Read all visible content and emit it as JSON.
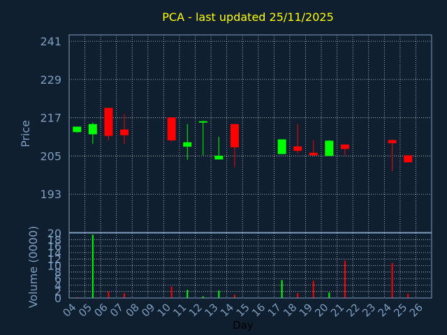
{
  "title": "PCA - last updated 25/11/2025",
  "colors": {
    "background": "#0f1f30",
    "title": "#ffff00",
    "axis_text": "#7f9fc0",
    "frame": "#7f9fc0",
    "grid": "#ffffff",
    "up": "#00ff00",
    "down": "#ff0000"
  },
  "chart_data": [
    {
      "type": "candlestick",
      "ylabel": "Price",
      "ylim": [
        181,
        243
      ],
      "yticks": [
        193,
        205,
        217,
        229,
        241
      ],
      "grid": true,
      "x_day_labels": [
        "04",
        "05",
        "06",
        "07",
        "08",
        "09",
        "10",
        "11",
        "12",
        "13",
        "14",
        "15",
        "16",
        "17",
        "18",
        "19",
        "20",
        "21",
        "22",
        "23",
        "24",
        "25",
        "26"
      ],
      "candles": [
        {
          "day": "04",
          "open": 212.5,
          "high": 214.2,
          "low": 212.3,
          "close": 214.2
        },
        {
          "day": "05",
          "open": 211.8,
          "high": 215.5,
          "low": 208.8,
          "close": 215.0
        },
        {
          "day": "06",
          "open": 220.1,
          "high": 220.1,
          "low": 209.9,
          "close": 211.3
        },
        {
          "day": "07",
          "open": 213.3,
          "high": 218.2,
          "low": 208.8,
          "close": 211.5
        },
        {
          "day": "10",
          "open": 217.1,
          "high": 217.1,
          "low": 209.5,
          "close": 209.9
        },
        {
          "day": "11",
          "open": 207.9,
          "high": 215.0,
          "low": 203.8,
          "close": 209.3
        },
        {
          "day": "12",
          "open": 215.9,
          "high": 216.1,
          "low": 205.2,
          "close": 215.9
        },
        {
          "day": "13",
          "open": 203.9,
          "high": 211.0,
          "low": 203.9,
          "close": 205.1
        },
        {
          "day": "14",
          "open": 215.0,
          "high": 215.0,
          "low": 201.5,
          "close": 207.7
        },
        {
          "day": "17",
          "open": 205.6,
          "high": 210.2,
          "low": 205.5,
          "close": 210.2
        },
        {
          "day": "18",
          "open": 208.0,
          "high": 215.0,
          "low": 205.8,
          "close": 206.6
        },
        {
          "day": "19",
          "open": 206.0,
          "high": 210.0,
          "low": 205.0,
          "close": 205.2
        },
        {
          "day": "20",
          "open": 205.0,
          "high": 210.0,
          "low": 205.0,
          "close": 209.8
        },
        {
          "day": "21",
          "open": 208.6,
          "high": 208.6,
          "low": 205.2,
          "close": 207.2
        },
        {
          "day": "24",
          "open": 210.0,
          "high": 210.2,
          "low": 200.2,
          "close": 209.0
        },
        {
          "day": "25",
          "open": 205.2,
          "high": 205.2,
          "low": 203.0,
          "close": 203.0
        }
      ]
    },
    {
      "type": "bar",
      "ylabel": "Volume (0000)",
      "xlabel": "Day",
      "ylim": [
        0,
        20
      ],
      "yticks": [
        0,
        2,
        4,
        6,
        8,
        10,
        12,
        14,
        16,
        18,
        20
      ],
      "grid": true,
      "x_day_labels": [
        "04",
        "05",
        "06",
        "07",
        "08",
        "09",
        "10",
        "11",
        "12",
        "13",
        "14",
        "15",
        "16",
        "17",
        "18",
        "19",
        "20",
        "21",
        "22",
        "23",
        "24",
        "25",
        "26"
      ],
      "bars": [
        {
          "day": "04",
          "value": 0.3,
          "dir": "down"
        },
        {
          "day": "05",
          "value": 19.5,
          "dir": "up"
        },
        {
          "day": "06",
          "value": 2.0,
          "dir": "down"
        },
        {
          "day": "07",
          "value": 1.5,
          "dir": "down"
        },
        {
          "day": "10",
          "value": 3.5,
          "dir": "down"
        },
        {
          "day": "11",
          "value": 2.5,
          "dir": "up"
        },
        {
          "day": "12",
          "value": 0.5,
          "dir": "up"
        },
        {
          "day": "13",
          "value": 2.3,
          "dir": "up"
        },
        {
          "day": "14",
          "value": 1.0,
          "dir": "down"
        },
        {
          "day": "17",
          "value": 5.5,
          "dir": "up"
        },
        {
          "day": "18",
          "value": 1.5,
          "dir": "down"
        },
        {
          "day": "19",
          "value": 5.3,
          "dir": "down"
        },
        {
          "day": "20",
          "value": 1.7,
          "dir": "up"
        },
        {
          "day": "21",
          "value": 11.5,
          "dir": "down"
        },
        {
          "day": "24",
          "value": 10.8,
          "dir": "down"
        },
        {
          "day": "25",
          "value": 1.3,
          "dir": "down"
        }
      ]
    }
  ]
}
